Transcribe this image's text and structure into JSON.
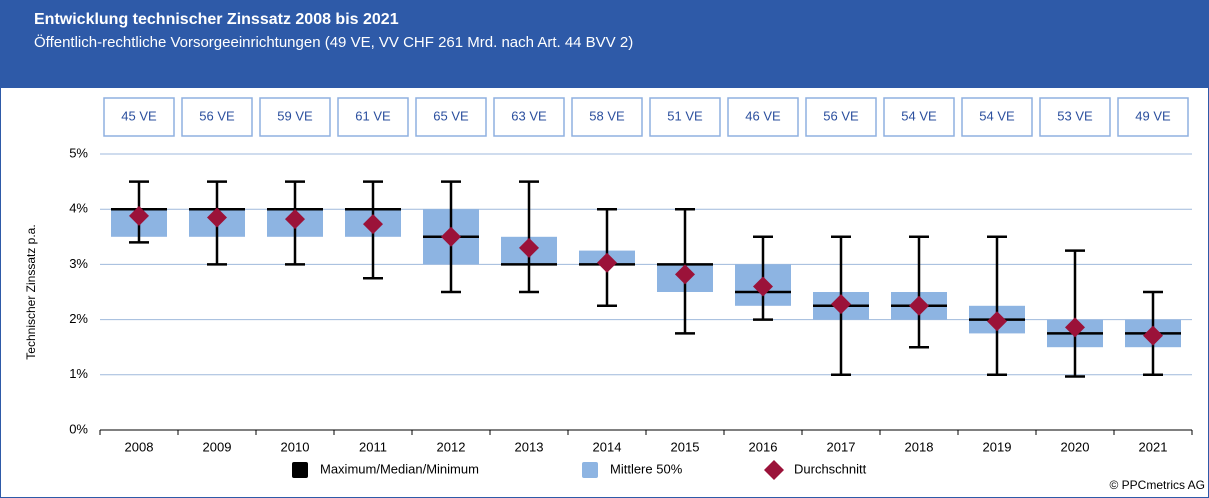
{
  "chart_data": {
    "type": "box",
    "title": "Entwicklung technischer Zinssatz 2008 bis 2021",
    "subtitle": "Öffentlich-rechtliche Vorsorgeeinrichtungen (49 VE, VV CHF 261 Mrd. nach Art. 44 BVV 2)",
    "y_label": "Technischer Zinssatz p.a.",
    "categories": [
      "2008",
      "2009",
      "2010",
      "2011",
      "2012",
      "2013",
      "2014",
      "2015",
      "2016",
      "2017",
      "2018",
      "2019",
      "2020",
      "2021"
    ],
    "counts": [
      "45 VE",
      "56 VE",
      "59 VE",
      "61 VE",
      "65 VE",
      "63 VE",
      "58 VE",
      "51 VE",
      "46 VE",
      "56 VE",
      "54 VE",
      "54 VE",
      "53 VE",
      "49 VE"
    ],
    "max": [
      4.5,
      4.5,
      4.5,
      4.5,
      4.5,
      4.5,
      4.0,
      4.0,
      3.5,
      3.5,
      3.5,
      3.5,
      3.25,
      2.5
    ],
    "q3": [
      4.0,
      4.0,
      4.0,
      4.0,
      4.0,
      3.5,
      3.25,
      3.0,
      3.0,
      2.5,
      2.5,
      2.25,
      2.0,
      2.0
    ],
    "median": [
      4.0,
      4.0,
      4.0,
      4.0,
      3.5,
      3.0,
      3.0,
      3.0,
      2.5,
      2.25,
      2.25,
      2.0,
      1.75,
      1.75
    ],
    "q1": [
      3.5,
      3.5,
      3.5,
      3.5,
      3.0,
      3.0,
      3.0,
      2.5,
      2.25,
      2.0,
      2.0,
      1.75,
      1.5,
      1.5
    ],
    "min": [
      3.4,
      3.0,
      3.0,
      2.75,
      2.5,
      2.5,
      2.25,
      1.75,
      2.0,
      1.0,
      1.5,
      1.0,
      0.97,
      1.0
    ],
    "mean": [
      3.88,
      3.85,
      3.82,
      3.73,
      3.5,
      3.3,
      3.03,
      2.82,
      2.6,
      2.28,
      2.25,
      1.97,
      1.86,
      1.71
    ],
    "legend": [
      {
        "name": "Maximum/Median/Minimum",
        "color": "#000000"
      },
      {
        "name": "Mittlere 50%",
        "color": "#8db4e2"
      },
      {
        "name": "Durchschnitt",
        "color": "#9b1239"
      }
    ],
    "ylim": [
      0,
      5
    ],
    "yticks": [
      {
        "value": 0,
        "label": "0%"
      },
      {
        "value": 1,
        "label": "1%"
      },
      {
        "value": 2,
        "label": "2%"
      },
      {
        "value": 3,
        "label": "3%"
      },
      {
        "value": 4,
        "label": "4%"
      },
      {
        "value": 5,
        "label": "5%"
      }
    ],
    "grid": true,
    "footer": "© PPCmetrics AG"
  }
}
